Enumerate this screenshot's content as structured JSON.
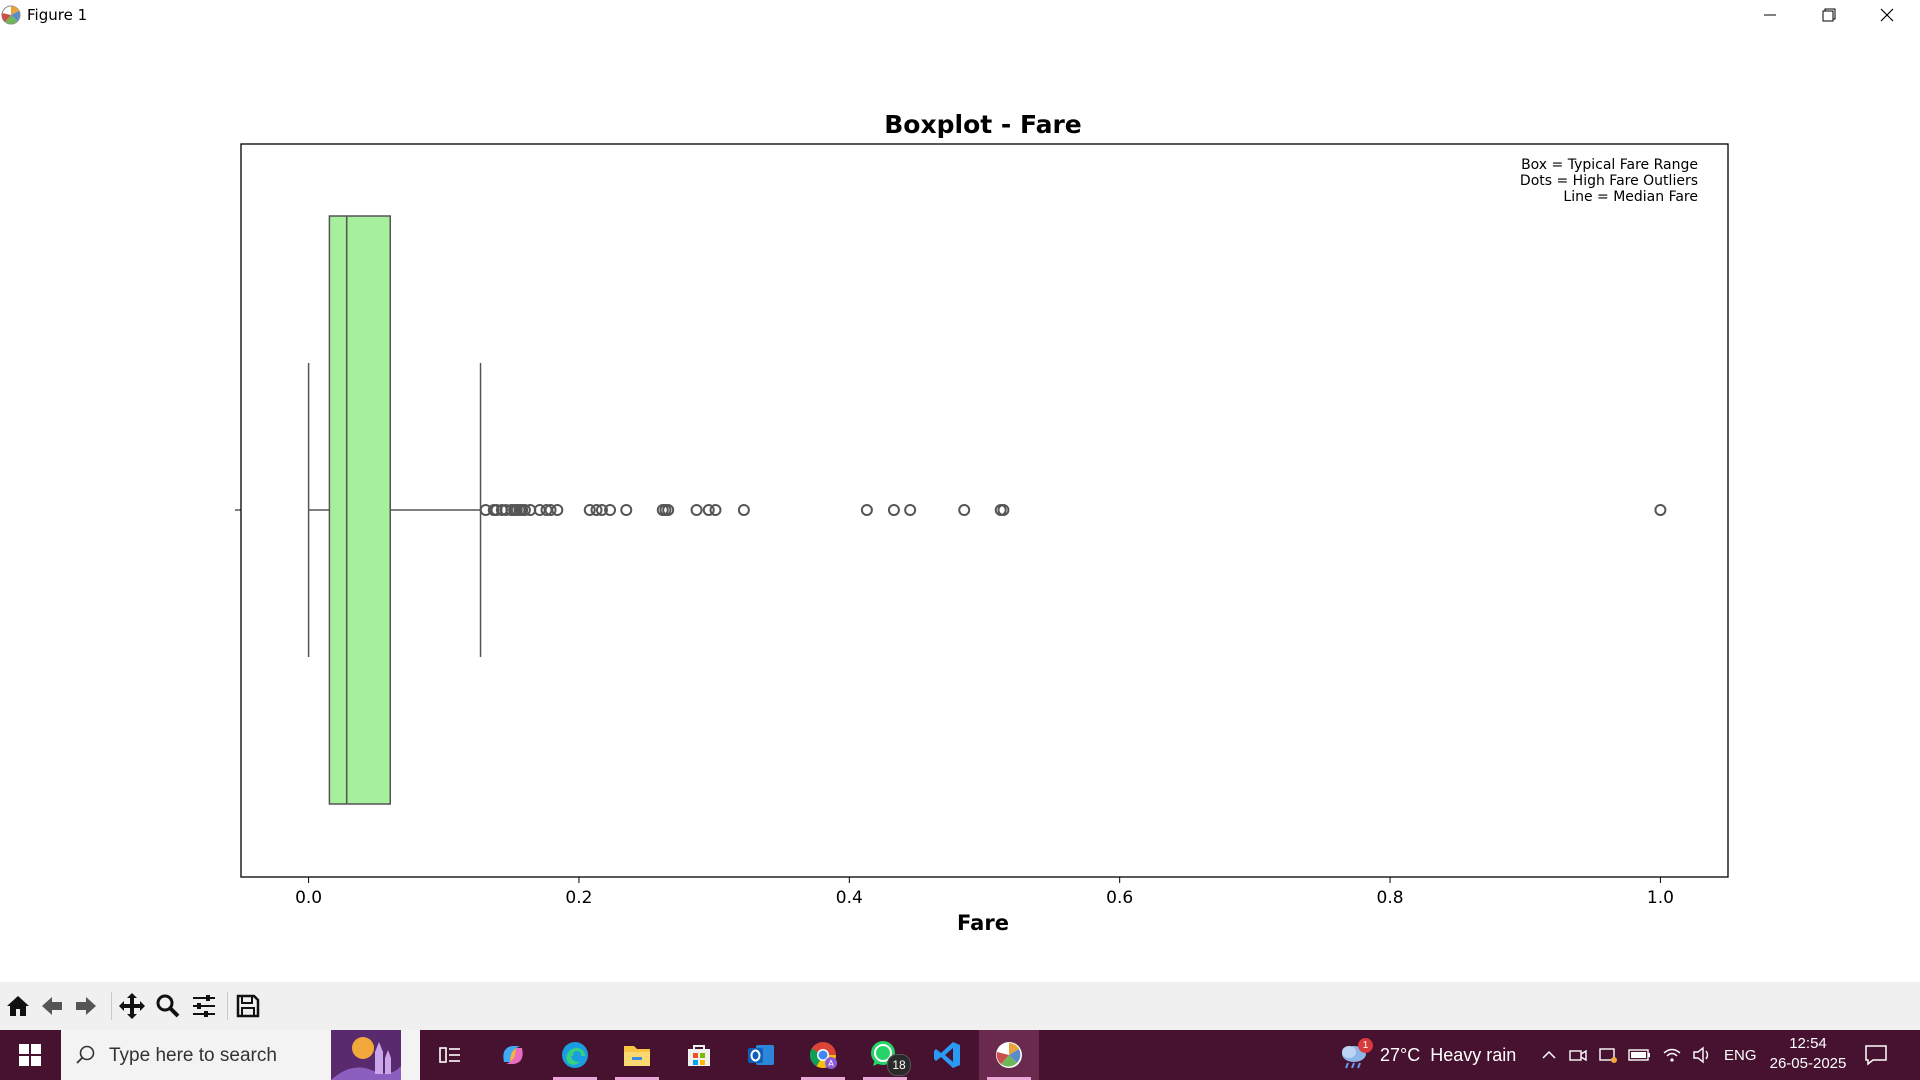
{
  "window": {
    "title": "Figure 1"
  },
  "chart_data": {
    "type": "boxplot",
    "title": "Boxplot - Fare",
    "xlabel": "Fare",
    "xlim": [
      -0.05,
      1.05
    ],
    "xticks": [
      "0.0",
      "0.2",
      "0.4",
      "0.6",
      "0.8",
      "1.0"
    ],
    "xtick_values": [
      0.0,
      0.2,
      0.4,
      0.6,
      0.8,
      1.0
    ],
    "box": {
      "whisker_low": 0.0,
      "q1": 0.0154,
      "median": 0.0282,
      "q3": 0.0604,
      "whisker_high": 0.1272,
      "color": "#a6ef9c"
    },
    "outliers": [
      0.131,
      0.137,
      0.139,
      0.143,
      0.146,
      0.15,
      0.152,
      0.154,
      0.156,
      0.158,
      0.16,
      0.164,
      0.171,
      0.176,
      0.179,
      0.184,
      0.208,
      0.213,
      0.217,
      0.223,
      0.235,
      0.262,
      0.264,
      0.266,
      0.287,
      0.296,
      0.301,
      0.322,
      0.413,
      0.433,
      0.445,
      0.485,
      0.512,
      0.514,
      1.0
    ],
    "annotation": [
      "Box = Typical Fare Range",
      "Dots = High Fare Outliers",
      "Line = Median Fare"
    ],
    "annotation_placement": "top-right"
  },
  "toolbar": {
    "items": [
      "home-icon",
      "back-icon",
      "forward-icon",
      "pan-icon",
      "zoom-icon",
      "configure-icon",
      "save-icon"
    ]
  },
  "taskbar": {
    "search_placeholder": "Type here to search",
    "weather": "27°C  Heavy rain",
    "weather_badge": "1",
    "whatsapp_badge": "18",
    "language": "ENG",
    "time": "12:54",
    "date": "26-05-2025"
  }
}
